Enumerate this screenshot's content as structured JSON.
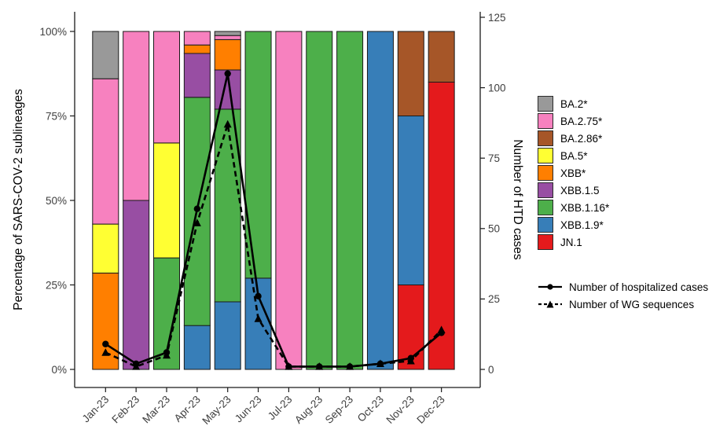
{
  "chart_data": {
    "type": "bar",
    "variant": "stacked-100pct-with-overlay-lines",
    "title": "",
    "grid": false,
    "legend_position": "right",
    "categories": [
      "Jan-23",
      "Feb-23",
      "Mar-23",
      "Apr-23",
      "May-23",
      "Jun-23",
      "Jul-23",
      "Aug-23",
      "Sep-23",
      "Oct-23",
      "Nov-23",
      "Dec-23"
    ],
    "stack_order": "first-series-on-top",
    "series": [
      {
        "name": "BA.2*",
        "color": "#999999",
        "values": [
          14,
          0,
          0,
          0,
          1.2,
          0,
          0,
          0,
          0,
          0,
          0,
          0
        ]
      },
      {
        "name": "BA.2.75*",
        "color": "#F781BF",
        "values": [
          43,
          50,
          33,
          4,
          1.2,
          0,
          100,
          0,
          0,
          0,
          0,
          0
        ]
      },
      {
        "name": "BA.2.86*",
        "color": "#A65628",
        "values": [
          0,
          0,
          0,
          0,
          0,
          0,
          0,
          0,
          0,
          0,
          25,
          15
        ]
      },
      {
        "name": "BA.5*",
        "color": "#FFFF33",
        "values": [
          14.5,
          0,
          34,
          0,
          0,
          0,
          0,
          0,
          0,
          0,
          0,
          0
        ]
      },
      {
        "name": "XBB*",
        "color": "#FF7F00",
        "values": [
          28.5,
          0,
          0,
          2.5,
          9,
          0,
          0,
          0,
          0,
          0,
          0,
          0
        ]
      },
      {
        "name": "XBB.1.5",
        "color": "#984EA3",
        "values": [
          0,
          50,
          0,
          13,
          11.6,
          0,
          0,
          0,
          0,
          0,
          0,
          0
        ]
      },
      {
        "name": "XBB.1.16*",
        "color": "#4DAF4A",
        "values": [
          0,
          0,
          33,
          67.5,
          57,
          73,
          0,
          100,
          100,
          0,
          0,
          0
        ]
      },
      {
        "name": "XBB.1.9*",
        "color": "#377EB8",
        "values": [
          0,
          0,
          0,
          13,
          20,
          27,
          0,
          0,
          0,
          100,
          50,
          0
        ]
      },
      {
        "name": "JN.1",
        "color": "#E41A1C",
        "values": [
          0,
          0,
          0,
          0,
          0,
          0,
          0,
          0,
          0,
          0,
          25,
          85
        ]
      }
    ],
    "lines": [
      {
        "name": "Number of hospitalized cases",
        "style": "solid",
        "marker": "circle",
        "color": "#000000",
        "values": [
          9,
          2,
          6,
          57,
          105,
          26,
          1,
          1,
          1,
          2,
          4,
          13
        ]
      },
      {
        "name": "Number of WG sequences",
        "style": "dashed",
        "marker": "triangle",
        "color": "#000000",
        "values": [
          6,
          1,
          5,
          52,
          87,
          18,
          1,
          1,
          1,
          2,
          3,
          14
        ]
      }
    ],
    "axes": {
      "left": {
        "label": "Percentage of SARS-COV-2 sublineages",
        "tick_labels": [
          "0%",
          "25%",
          "50%",
          "75%",
          "100%"
        ],
        "tick_values": [
          0,
          25,
          50,
          75,
          100
        ],
        "range": [
          0,
          100
        ]
      },
      "right": {
        "label": "Number of HTD cases",
        "tick_labels": [
          "0",
          "25",
          "50",
          "75",
          "100",
          "125"
        ],
        "tick_values": [
          0,
          25,
          50,
          75,
          100,
          125
        ],
        "range": [
          0,
          125
        ]
      }
    },
    "colors": {
      "axis_line": "#1a1a1a",
      "tick_label": "#404040",
      "axis_title": "#000000",
      "bar_border": "#1a1a1a"
    }
  }
}
